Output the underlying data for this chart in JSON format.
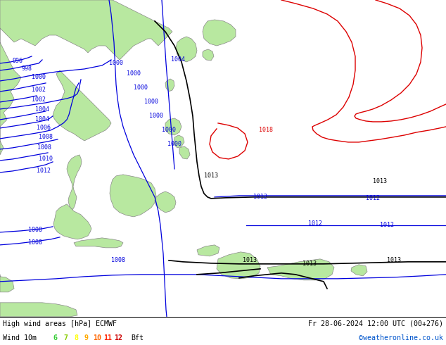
{
  "title_left": "High wind areas [hPa] ECMWF",
  "title_right": "Fr 28-06-2024 12:00 UTC (00+276)",
  "subtitle_left": "Wind 10m",
  "subtitle_right": "©weatheronline.co.uk",
  "bft_label": "Bft",
  "bft_values": [
    "6",
    "7",
    "8",
    "9",
    "10",
    "11",
    "12"
  ],
  "bft_colors": [
    "#33cc33",
    "#88cc00",
    "#ffff00",
    "#ffaa00",
    "#ff6600",
    "#ff2200",
    "#cc0000"
  ],
  "fig_width": 6.34,
  "fig_height": 4.9,
  "dpi": 100,
  "ocean_color": "#f0f0f0",
  "land_color": "#b8e8a0",
  "land_edge_color": "#888888",
  "blue_color": "#0000dd",
  "red_color": "#dd0000",
  "black_color": "#000000",
  "bottom_bar_height": 0.082,
  "legend_bg": "#ffffff"
}
